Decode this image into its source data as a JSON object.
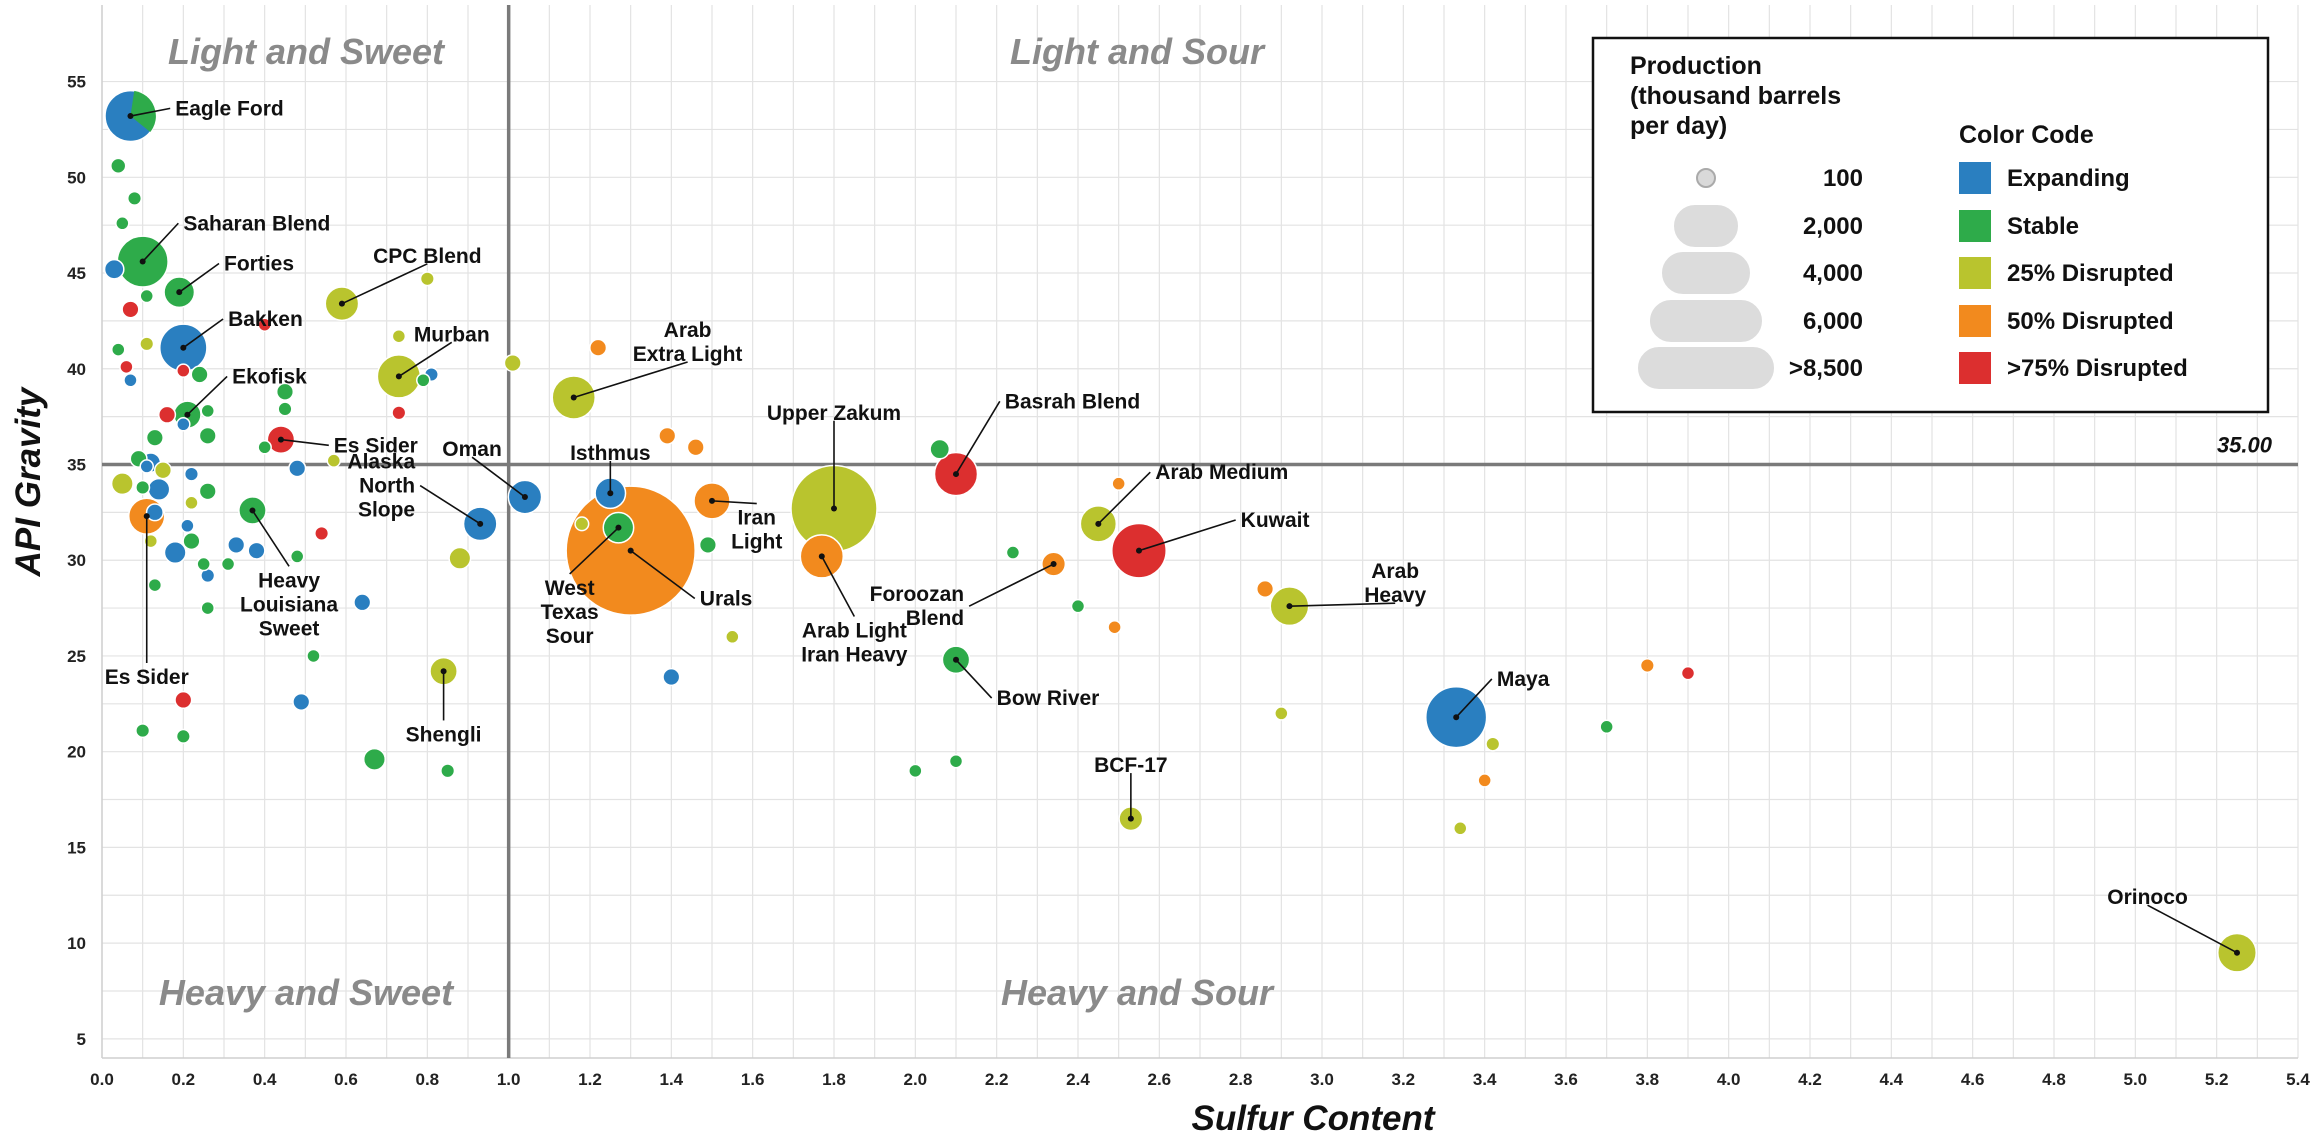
{
  "chart_data": {
    "type": "scatter",
    "xlabel": "Sulfur Content",
    "ylabel": "API Gravity",
    "xlim": [
      0,
      5.4
    ],
    "ylim": [
      4,
      59
    ],
    "x_ticks": [
      "0.0",
      "0.2",
      "0.4",
      "0.6",
      "0.8",
      "1.0",
      "1.2",
      "1.4",
      "1.6",
      "1.8",
      "2.0",
      "2.2",
      "2.4",
      "2.6",
      "2.8",
      "3.0",
      "3.2",
      "3.4",
      "3.6",
      "3.8",
      "4.0",
      "4.2",
      "4.4",
      "4.6",
      "4.8",
      "5.0",
      "5.2",
      "5.4"
    ],
    "y_ticks": [
      "5",
      "10",
      "15",
      "20",
      "25",
      "30",
      "35",
      "40",
      "45",
      "50",
      "55"
    ],
    "grid": true,
    "reference_lines": {
      "x": 1.0,
      "y": 35.0,
      "y_label": "35.00"
    },
    "quadrants": {
      "top_left": "Light and Sweet",
      "top_right": "Light and Sour",
      "bottom_left": "Heavy and Sweet",
      "bottom_right": "Heavy and Sour"
    },
    "legend": {
      "position": "top-right",
      "size_title": [
        "Production",
        "(thousand barrels",
        "per day)"
      ],
      "size_entries": [
        {
          "label": "100",
          "value": 100
        },
        {
          "label": "2,000",
          "value": 2000
        },
        {
          "label": "4,000",
          "value": 4000
        },
        {
          "label": "6,000",
          "value": 6000
        },
        {
          "label": ">8,500",
          "value": 8500
        }
      ],
      "color_title": "Color Code",
      "color_entries": [
        {
          "key": "expanding",
          "label": "Expanding",
          "color": "#2a7fc0"
        },
        {
          "key": "stable",
          "label": "Stable",
          "color": "#2eab4a"
        },
        {
          "key": "d25",
          "label": "25% Disrupted",
          "color": "#b9c42e"
        },
        {
          "key": "d50",
          "label": "50% Disrupted",
          "color": "#f28a1e"
        },
        {
          "key": "d75",
          "label": ">75% Disrupted",
          "color": "#dc2f2f"
        }
      ]
    },
    "labeled_points": [
      {
        "name": "Eagle Ford",
        "x": 0.07,
        "y": 53.2,
        "production": 1400,
        "status": "expanding",
        "pie": "stable",
        "label": [
          "Eagle Ford"
        ],
        "lx": 0.18,
        "ly": 53.6,
        "anchor": "start"
      },
      {
        "name": "Saharan Blend",
        "x": 0.1,
        "y": 45.6,
        "production": 1400,
        "status": "stable",
        "label": [
          "Saharan Blend"
        ],
        "lx": 0.2,
        "ly": 47.6,
        "anchor": "start"
      },
      {
        "name": "Forties",
        "x": 0.19,
        "y": 44.0,
        "production": 500,
        "status": "stable",
        "label": [
          "Forties"
        ],
        "lx": 0.3,
        "ly": 45.5,
        "anchor": "start"
      },
      {
        "name": "Bakken",
        "x": 0.2,
        "y": 41.1,
        "production": 1200,
        "status": "expanding",
        "label": [
          "Bakken"
        ],
        "lx": 0.31,
        "ly": 42.6,
        "anchor": "start"
      },
      {
        "name": "Ekofisk",
        "x": 0.21,
        "y": 37.6,
        "production": 400,
        "status": "stable",
        "label": [
          "Ekofisk"
        ],
        "lx": 0.32,
        "ly": 39.6,
        "anchor": "start"
      },
      {
        "name": "Es Sider",
        "x": 0.44,
        "y": 36.3,
        "production": 400,
        "status": "d75",
        "label": [
          "Es Sider"
        ],
        "lx": 0.57,
        "ly": 36.0,
        "anchor": "start"
      },
      {
        "name": "Es Sider",
        "x": 0.11,
        "y": 32.3,
        "production": 700,
        "status": "d50",
        "label": [
          "Es Sider"
        ],
        "lx": 0.11,
        "ly": 23.9,
        "anchor": "middle"
      },
      {
        "name": "CPC Blend",
        "x": 0.59,
        "y": 43.4,
        "production": 600,
        "status": "d25",
        "label": [
          "CPC Blend"
        ],
        "lx": 0.8,
        "ly": 45.9,
        "anchor": "middle"
      },
      {
        "name": "Murban",
        "x": 0.73,
        "y": 39.6,
        "production": 1000,
        "status": "d25",
        "label": [
          "Murban"
        ],
        "lx": 0.86,
        "ly": 41.8,
        "anchor": "middle"
      },
      {
        "name": "Heavy Louisiana Sweet",
        "x": 0.37,
        "y": 32.6,
        "production": 400,
        "status": "stable",
        "label": [
          "Heavy",
          "Louisiana",
          "Sweet"
        ],
        "lx": 0.46,
        "ly": 27.7,
        "anchor": "middle"
      },
      {
        "name": "Alaska North Slope",
        "x": 0.93,
        "y": 31.9,
        "production": 600,
        "status": "expanding",
        "label": [
          "Alaska",
          "North",
          "Slope"
        ],
        "lx": 0.77,
        "ly": 33.9,
        "anchor": "end"
      },
      {
        "name": "Oman",
        "x": 1.04,
        "y": 33.3,
        "production": 600,
        "status": "expanding",
        "label": [
          "Oman"
        ],
        "lx": 0.91,
        "ly": 35.8,
        "anchor": "middle"
      },
      {
        "name": "Shengli",
        "x": 0.84,
        "y": 24.2,
        "production": 400,
        "status": "d25",
        "label": [
          "Shengli"
        ],
        "lx": 0.84,
        "ly": 20.9,
        "anchor": "middle"
      },
      {
        "name": "Isthmus",
        "x": 1.25,
        "y": 33.5,
        "production": 500,
        "status": "expanding",
        "label": [
          "Isthmus"
        ],
        "lx": 1.25,
        "ly": 35.6,
        "anchor": "middle"
      },
      {
        "name": "West Texas Sour",
        "x": 1.27,
        "y": 31.7,
        "production": 500,
        "status": "stable",
        "label": [
          "West",
          "Texas",
          "Sour"
        ],
        "lx": 1.15,
        "ly": 27.3,
        "anchor": "middle"
      },
      {
        "name": "Urals",
        "x": 1.3,
        "y": 30.5,
        "production": 9000,
        "status": "d50",
        "label": [
          "Urals"
        ],
        "lx": 1.47,
        "ly": 28.0,
        "anchor": "start"
      },
      {
        "name": "Arab Extra Light",
        "x": 1.16,
        "y": 38.5,
        "production": 1000,
        "status": "d25",
        "label": [
          "Arab",
          "Extra Light"
        ],
        "lx": 1.44,
        "ly": 41.4,
        "anchor": "middle"
      },
      {
        "name": "Iran Light",
        "x": 1.5,
        "y": 33.1,
        "production": 700,
        "status": "d50",
        "label": [
          "Iran",
          "Light"
        ],
        "lx": 1.61,
        "ly": 31.6,
        "anchor": "middle"
      },
      {
        "name": "Upper Zakum",
        "x": 1.8,
        "y": 32.7,
        "production": 4000,
        "status": "d25",
        "label": [
          "Upper Zakum"
        ],
        "lx": 1.8,
        "ly": 37.7,
        "anchor": "middle"
      },
      {
        "name": "Arab Light Iran Heavy",
        "x": 1.77,
        "y": 30.2,
        "production": 1000,
        "status": "d50",
        "label": [
          "Arab Light",
          "Iran Heavy"
        ],
        "lx": 1.85,
        "ly": 25.7,
        "anchor": "middle"
      },
      {
        "name": "Basrah Blend",
        "x": 2.1,
        "y": 34.5,
        "production": 1000,
        "status": "d75",
        "label": [
          "Basrah Blend"
        ],
        "lx": 2.22,
        "ly": 38.3,
        "anchor": "start"
      },
      {
        "name": "Arab Medium",
        "x": 2.45,
        "y": 31.9,
        "production": 700,
        "status": "d25",
        "label": [
          "Arab Medium"
        ],
        "lx": 2.59,
        "ly": 34.6,
        "anchor": "start"
      },
      {
        "name": "Kuwait",
        "x": 2.55,
        "y": 30.5,
        "production": 1600,
        "status": "d75",
        "label": [
          "Kuwait"
        ],
        "lx": 2.8,
        "ly": 32.1,
        "anchor": "start"
      },
      {
        "name": "Foroozan Blend",
        "x": 2.34,
        "y": 29.8,
        "production": 300,
        "status": "d50",
        "label": [
          "Foroozan",
          "Blend"
        ],
        "lx": 2.12,
        "ly": 27.6,
        "anchor": "end"
      },
      {
        "name": "Arab Heavy",
        "x": 2.92,
        "y": 27.6,
        "production": 800,
        "status": "d25",
        "label": [
          "Arab",
          "Heavy"
        ],
        "lx": 3.18,
        "ly": 28.8,
        "anchor": "middle"
      },
      {
        "name": "Bow River",
        "x": 2.1,
        "y": 24.8,
        "production": 400,
        "status": "stable",
        "label": [
          "Bow River"
        ],
        "lx": 2.2,
        "ly": 22.8,
        "anchor": "start"
      },
      {
        "name": "BCF-17",
        "x": 2.53,
        "y": 16.5,
        "production": 300,
        "status": "d25",
        "label": [
          "BCF-17"
        ],
        "lx": 2.53,
        "ly": 19.3,
        "anchor": "middle"
      },
      {
        "name": "Maya",
        "x": 3.33,
        "y": 21.8,
        "production": 2000,
        "status": "expanding",
        "label": [
          "Maya"
        ],
        "lx": 3.43,
        "ly": 23.8,
        "anchor": "start"
      },
      {
        "name": "Orinoco",
        "x": 5.25,
        "y": 9.5,
        "production": 800,
        "status": "d25",
        "label": [
          "Orinoco"
        ],
        "lx": 5.03,
        "ly": 12.4,
        "anchor": "middle"
      }
    ],
    "other_points": [
      {
        "x": 0.03,
        "y": 45.2,
        "production": 200,
        "status": "expanding"
      },
      {
        "x": 0.04,
        "y": 50.6,
        "production": 120,
        "status": "stable"
      },
      {
        "x": 0.08,
        "y": 48.9,
        "production": 100,
        "status": "stable"
      },
      {
        "x": 0.05,
        "y": 47.6,
        "production": 50,
        "status": "stable"
      },
      {
        "x": 0.11,
        "y": 43.8,
        "production": 60,
        "status": "stable"
      },
      {
        "x": 0.07,
        "y": 43.1,
        "production": 150,
        "status": "d75"
      },
      {
        "x": 0.11,
        "y": 41.3,
        "production": 100,
        "status": "d25"
      },
      {
        "x": 0.04,
        "y": 41.0,
        "production": 60,
        "status": "stable"
      },
      {
        "x": 0.06,
        "y": 40.1,
        "production": 50,
        "status": "d75"
      },
      {
        "x": 0.07,
        "y": 39.4,
        "production": 60,
        "status": "expanding"
      },
      {
        "x": 0.2,
        "y": 39.9,
        "production": 80,
        "status": "d75"
      },
      {
        "x": 0.24,
        "y": 39.7,
        "production": 150,
        "status": "stable"
      },
      {
        "x": 0.16,
        "y": 37.6,
        "production": 150,
        "status": "d75"
      },
      {
        "x": 0.26,
        "y": 37.8,
        "production": 80,
        "status": "stable"
      },
      {
        "x": 0.2,
        "y": 37.1,
        "production": 50,
        "status": "expanding"
      },
      {
        "x": 0.13,
        "y": 36.4,
        "production": 150,
        "status": "stable"
      },
      {
        "x": 0.26,
        "y": 36.5,
        "production": 150,
        "status": "stable"
      },
      {
        "x": 0.09,
        "y": 35.3,
        "production": 150,
        "status": "stable"
      },
      {
        "x": 0.12,
        "y": 35.1,
        "production": 200,
        "status": "expanding"
      },
      {
        "x": 0.11,
        "y": 34.9,
        "production": 60,
        "status": "expanding"
      },
      {
        "x": 0.15,
        "y": 34.7,
        "production": 150,
        "status": "d25"
      },
      {
        "x": 0.22,
        "y": 34.5,
        "production": 100,
        "status": "expanding"
      },
      {
        "x": 0.05,
        "y": 34.0,
        "production": 250,
        "status": "d25"
      },
      {
        "x": 0.1,
        "y": 33.8,
        "production": 100,
        "status": "stable"
      },
      {
        "x": 0.14,
        "y": 33.7,
        "production": 250,
        "status": "expanding"
      },
      {
        "x": 0.26,
        "y": 33.6,
        "production": 150,
        "status": "stable"
      },
      {
        "x": 0.22,
        "y": 33.0,
        "production": 80,
        "status": "d25"
      },
      {
        "x": 0.13,
        "y": 32.5,
        "production": 150,
        "status": "expanding"
      },
      {
        "x": 0.21,
        "y": 31.8,
        "production": 60,
        "status": "expanding"
      },
      {
        "x": 0.22,
        "y": 31.0,
        "production": 150,
        "status": "stable"
      },
      {
        "x": 0.12,
        "y": 31.0,
        "production": 80,
        "status": "d25"
      },
      {
        "x": 0.18,
        "y": 30.4,
        "production": 250,
        "status": "expanding"
      },
      {
        "x": 0.33,
        "y": 30.8,
        "production": 150,
        "status": "expanding"
      },
      {
        "x": 0.38,
        "y": 30.5,
        "production": 150,
        "status": "expanding"
      },
      {
        "x": 0.25,
        "y": 29.8,
        "production": 80,
        "status": "stable"
      },
      {
        "x": 0.31,
        "y": 29.8,
        "production": 60,
        "status": "stable"
      },
      {
        "x": 0.26,
        "y": 29.2,
        "production": 100,
        "status": "expanding"
      },
      {
        "x": 0.13,
        "y": 28.7,
        "production": 60,
        "status": "stable"
      },
      {
        "x": 0.26,
        "y": 27.5,
        "production": 80,
        "status": "stable"
      },
      {
        "x": 0.48,
        "y": 30.2,
        "production": 80,
        "status": "stable"
      },
      {
        "x": 0.54,
        "y": 31.4,
        "production": 100,
        "status": "d75"
      },
      {
        "x": 0.48,
        "y": 34.8,
        "production": 150,
        "status": "expanding"
      },
      {
        "x": 0.4,
        "y": 35.9,
        "production": 60,
        "status": "stable"
      },
      {
        "x": 0.45,
        "y": 37.9,
        "production": 100,
        "status": "stable"
      },
      {
        "x": 0.45,
        "y": 38.8,
        "production": 150,
        "status": "stable"
      },
      {
        "x": 0.4,
        "y": 42.3,
        "production": 50,
        "status": "d75"
      },
      {
        "x": 0.57,
        "y": 35.2,
        "production": 40,
        "status": "d25"
      },
      {
        "x": 0.64,
        "y": 27.8,
        "production": 150,
        "status": "expanding"
      },
      {
        "x": 0.52,
        "y": 25.0,
        "production": 60,
        "status": "stable"
      },
      {
        "x": 0.49,
        "y": 22.6,
        "production": 150,
        "status": "expanding"
      },
      {
        "x": 0.2,
        "y": 22.7,
        "production": 150,
        "status": "d75"
      },
      {
        "x": 0.1,
        "y": 21.1,
        "production": 100,
        "status": "stable"
      },
      {
        "x": 0.2,
        "y": 20.8,
        "production": 100,
        "status": "stable"
      },
      {
        "x": 0.67,
        "y": 19.6,
        "production": 250,
        "status": "stable"
      },
      {
        "x": 0.85,
        "y": 19.0,
        "production": 100,
        "status": "stable"
      },
      {
        "x": 0.73,
        "y": 41.7,
        "production": 60,
        "status": "d25"
      },
      {
        "x": 0.73,
        "y": 37.7,
        "production": 100,
        "status": "d75"
      },
      {
        "x": 0.8,
        "y": 44.7,
        "production": 100,
        "status": "d25"
      },
      {
        "x": 0.79,
        "y": 39.4,
        "production": 60,
        "status": "stable"
      },
      {
        "x": 0.81,
        "y": 39.7,
        "production": 100,
        "status": "expanding"
      },
      {
        "x": 0.88,
        "y": 30.1,
        "production": 250,
        "status": "d25"
      },
      {
        "x": 1.01,
        "y": 40.3,
        "production": 150,
        "status": "d25"
      },
      {
        "x": 1.22,
        "y": 41.1,
        "production": 150,
        "status": "d50"
      },
      {
        "x": 1.18,
        "y": 31.9,
        "production": 100,
        "status": "d25"
      },
      {
        "x": 1.39,
        "y": 36.5,
        "production": 150,
        "status": "d50"
      },
      {
        "x": 1.46,
        "y": 35.9,
        "production": 150,
        "status": "d50"
      },
      {
        "x": 1.49,
        "y": 30.8,
        "production": 150,
        "status": "stable"
      },
      {
        "x": 1.4,
        "y": 23.9,
        "production": 150,
        "status": "expanding"
      },
      {
        "x": 1.55,
        "y": 26.0,
        "production": 80,
        "status": "d25"
      },
      {
        "x": 2.06,
        "y": 35.8,
        "production": 200,
        "status": "stable"
      },
      {
        "x": 2.24,
        "y": 30.4,
        "production": 80,
        "status": "stable"
      },
      {
        "x": 2.4,
        "y": 27.6,
        "production": 80,
        "status": "stable"
      },
      {
        "x": 2.49,
        "y": 26.5,
        "production": 50,
        "status": "d50"
      },
      {
        "x": 2.5,
        "y": 34.0,
        "production": 80,
        "status": "d50"
      },
      {
        "x": 2.0,
        "y": 19.0,
        "production": 80,
        "status": "stable"
      },
      {
        "x": 2.1,
        "y": 19.5,
        "production": 50,
        "status": "stable"
      },
      {
        "x": 2.86,
        "y": 28.5,
        "production": 150,
        "status": "d50"
      },
      {
        "x": 2.9,
        "y": 22.0,
        "production": 50,
        "status": "d25"
      },
      {
        "x": 3.42,
        "y": 20.4,
        "production": 100,
        "status": "d25"
      },
      {
        "x": 3.4,
        "y": 18.5,
        "production": 80,
        "status": "d50"
      },
      {
        "x": 3.34,
        "y": 16.0,
        "production": 50,
        "status": "d25"
      },
      {
        "x": 3.7,
        "y": 21.3,
        "production": 80,
        "status": "stable"
      },
      {
        "x": 3.8,
        "y": 24.5,
        "production": 100,
        "status": "d50"
      },
      {
        "x": 3.9,
        "y": 24.1,
        "production": 80,
        "status": "d75"
      }
    ]
  }
}
